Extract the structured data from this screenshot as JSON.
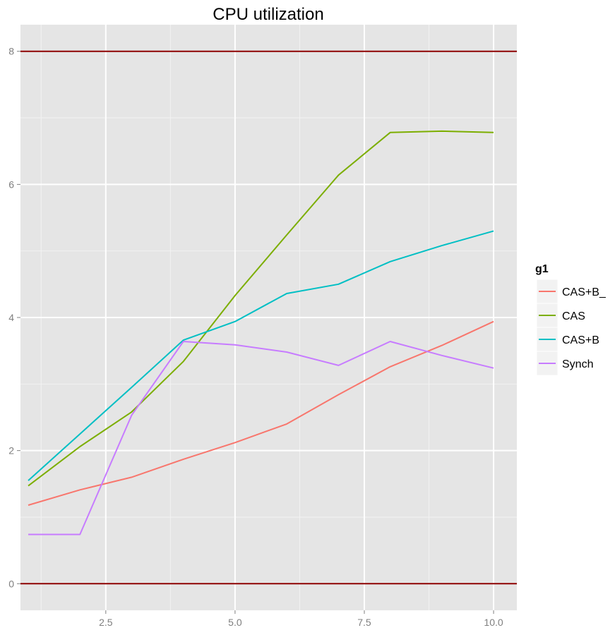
{
  "chart_data": {
    "type": "line",
    "title": "CPU utilization",
    "xlabel": "",
    "ylabel": "",
    "xlim": [
      0.85,
      10.45
    ],
    "ylim": [
      -0.4,
      8.4
    ],
    "x_ticks": [
      2.5,
      5.0,
      7.5,
      10.0
    ],
    "x_tick_labels": [
      "2.5",
      "5.0",
      "7.5",
      "10.0"
    ],
    "y_ticks": [
      0,
      2,
      4,
      6,
      8
    ],
    "y_tick_labels": [
      "0",
      "2",
      "4",
      "6",
      "8"
    ],
    "grid": true,
    "reference_lines": [
      {
        "y": 8,
        "color": "#8b0000"
      },
      {
        "y": 0,
        "color": "#8b0000"
      }
    ],
    "legend": {
      "title": "g1",
      "position": "right"
    },
    "x": [
      1,
      2,
      3,
      4,
      5,
      6,
      7,
      8,
      9,
      10
    ],
    "series": [
      {
        "name": "CAS+B_",
        "color": "#f8766d",
        "values": [
          1.18,
          1.41,
          1.6,
          1.87,
          2.12,
          2.4,
          2.84,
          3.26,
          3.58,
          3.94
        ]
      },
      {
        "name": "CAS",
        "color": "#7cae00",
        "values": [
          1.47,
          2.06,
          2.58,
          3.34,
          4.33,
          5.24,
          6.14,
          6.78,
          6.8,
          6.78
        ]
      },
      {
        "name": "CAS+B",
        "color": "#00bfc4",
        "values": [
          1.55,
          2.25,
          2.95,
          3.66,
          3.94,
          4.36,
          4.5,
          4.84,
          5.08,
          5.3
        ]
      },
      {
        "name": "Synch",
        "color": "#c77cff",
        "values": [
          0.74,
          0.74,
          2.53,
          3.64,
          3.59,
          3.48,
          3.28,
          3.64,
          3.43,
          3.24
        ]
      }
    ]
  }
}
